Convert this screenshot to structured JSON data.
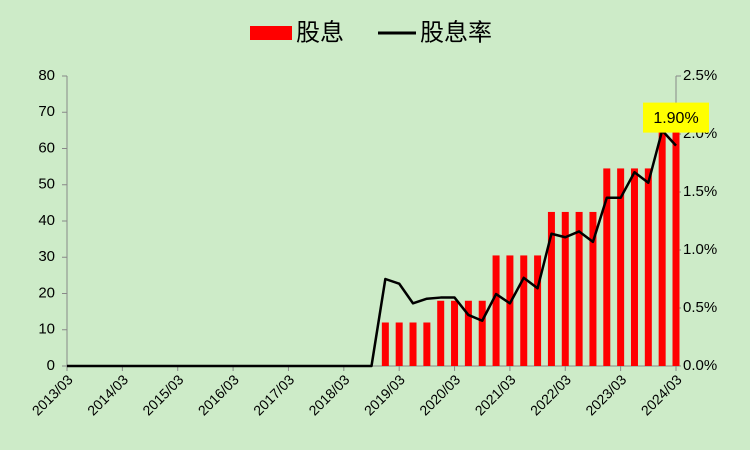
{
  "chart_data": {
    "type": "bar_line",
    "categories": [
      "2013/03",
      null,
      null,
      null,
      "2014/03",
      null,
      null,
      null,
      "2015/03",
      null,
      null,
      null,
      "2016/03",
      null,
      null,
      null,
      "2017/03",
      null,
      null,
      null,
      "2018/03",
      null,
      null,
      null,
      "2019/03",
      null,
      null,
      null,
      "2020/03",
      null,
      null,
      null,
      "2021/03",
      null,
      null,
      null,
      "2022/03",
      null,
      null,
      null,
      "2023/03",
      null,
      null,
      null,
      "2024/03"
    ],
    "series": [
      {
        "name": "股息",
        "type": "bar",
        "color": "#ff0000",
        "axis": "y",
        "values": [
          0,
          0,
          0,
          0,
          0,
          0,
          0,
          0,
          0,
          0,
          0,
          0,
          0,
          0,
          0,
          0,
          0,
          0,
          0,
          0,
          0,
          0,
          0,
          12,
          12,
          12,
          12,
          18,
          18,
          18,
          18,
          30.5,
          30.5,
          30.5,
          30.5,
          42.5,
          42.5,
          42.5,
          42.5,
          54.5,
          54.5,
          54.5,
          54.5,
          65,
          65
        ]
      },
      {
        "name": "股息率",
        "type": "line",
        "color": "#000000",
        "axis": "y2",
        "values": [
          0,
          0,
          0,
          0,
          0,
          0,
          0,
          0,
          0,
          0,
          0,
          0,
          0,
          0,
          0,
          0,
          0,
          0,
          0,
          0,
          0,
          0,
          0,
          0.75,
          0.71,
          0.54,
          0.58,
          0.59,
          0.59,
          0.44,
          0.39,
          0.62,
          0.54,
          0.76,
          0.67,
          1.14,
          1.11,
          1.16,
          1.07,
          1.45,
          1.45,
          1.67,
          1.58,
          2.03,
          1.9
        ],
        "value_labels": [
          null,
          null,
          null,
          null,
          null,
          null,
          null,
          null,
          null,
          null,
          null,
          null,
          null,
          null,
          null,
          null,
          null,
          null,
          null,
          null,
          null,
          null,
          null,
          null,
          null,
          null,
          null,
          null,
          null,
          null,
          null,
          null,
          null,
          null,
          null,
          null,
          null,
          null,
          null,
          null,
          null,
          null,
          null,
          null,
          "1.90%"
        ]
      }
    ],
    "ylim": [
      0,
      80
    ],
    "yticks": [
      0,
      10,
      20,
      30,
      40,
      50,
      60,
      70,
      80
    ],
    "y2lim": [
      0,
      2.5
    ],
    "y2ticks": [
      {
        "value": 0,
        "label": "0.0%"
      },
      {
        "value": 0.5,
        "label": "0.5%"
      },
      {
        "value": 1,
        "label": "1.0%"
      },
      {
        "value": 1.5,
        "label": "1.5%"
      },
      {
        "value": 2,
        "label": "2.0%"
      },
      {
        "value": 2.5,
        "label": "2.5%"
      }
    ],
    "legend": "top",
    "background": "#cdebc8"
  }
}
